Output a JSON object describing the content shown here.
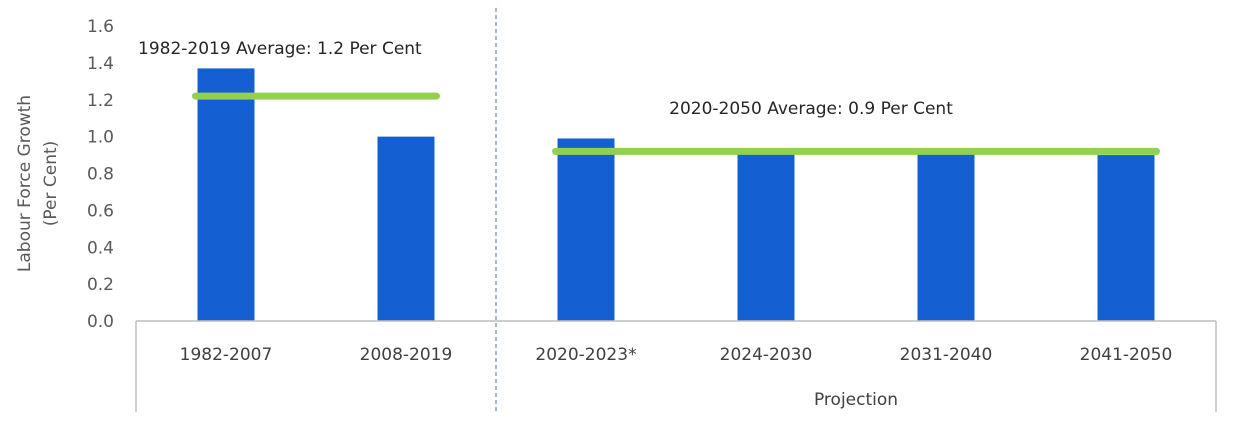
{
  "chart_data": {
    "type": "bar",
    "categories": [
      "1982-2007",
      "2008-2019",
      "2020-2023*",
      "2024-2030",
      "2031-2040",
      "2041-2050"
    ],
    "values": [
      1.37,
      1.0,
      0.99,
      0.91,
      0.91,
      0.9
    ],
    "ylabel_lines": [
      "Labour Force Growth",
      "(Per Cent)"
    ],
    "ylim": [
      0.0,
      1.6
    ],
    "yticks": [
      "0.0",
      "0.2",
      "0.4",
      "0.6",
      "0.8",
      "1.0",
      "1.2",
      "1.4",
      "1.6"
    ],
    "grid": false,
    "bar_color": "#1460D2",
    "average_line_color": "#92D050",
    "averages": [
      {
        "label": "1982-2019 Average: 1.2 Per Cent",
        "value": 1.22,
        "from_category": 0,
        "to_category": 1
      },
      {
        "label": "2020-2050 Average: 0.9 Per Cent",
        "value": 0.92,
        "from_category": 2,
        "to_category": 5
      }
    ],
    "group_label": "Projection",
    "divider": "dashed vertical line between 2008-2019 and 2020-2023*"
  }
}
